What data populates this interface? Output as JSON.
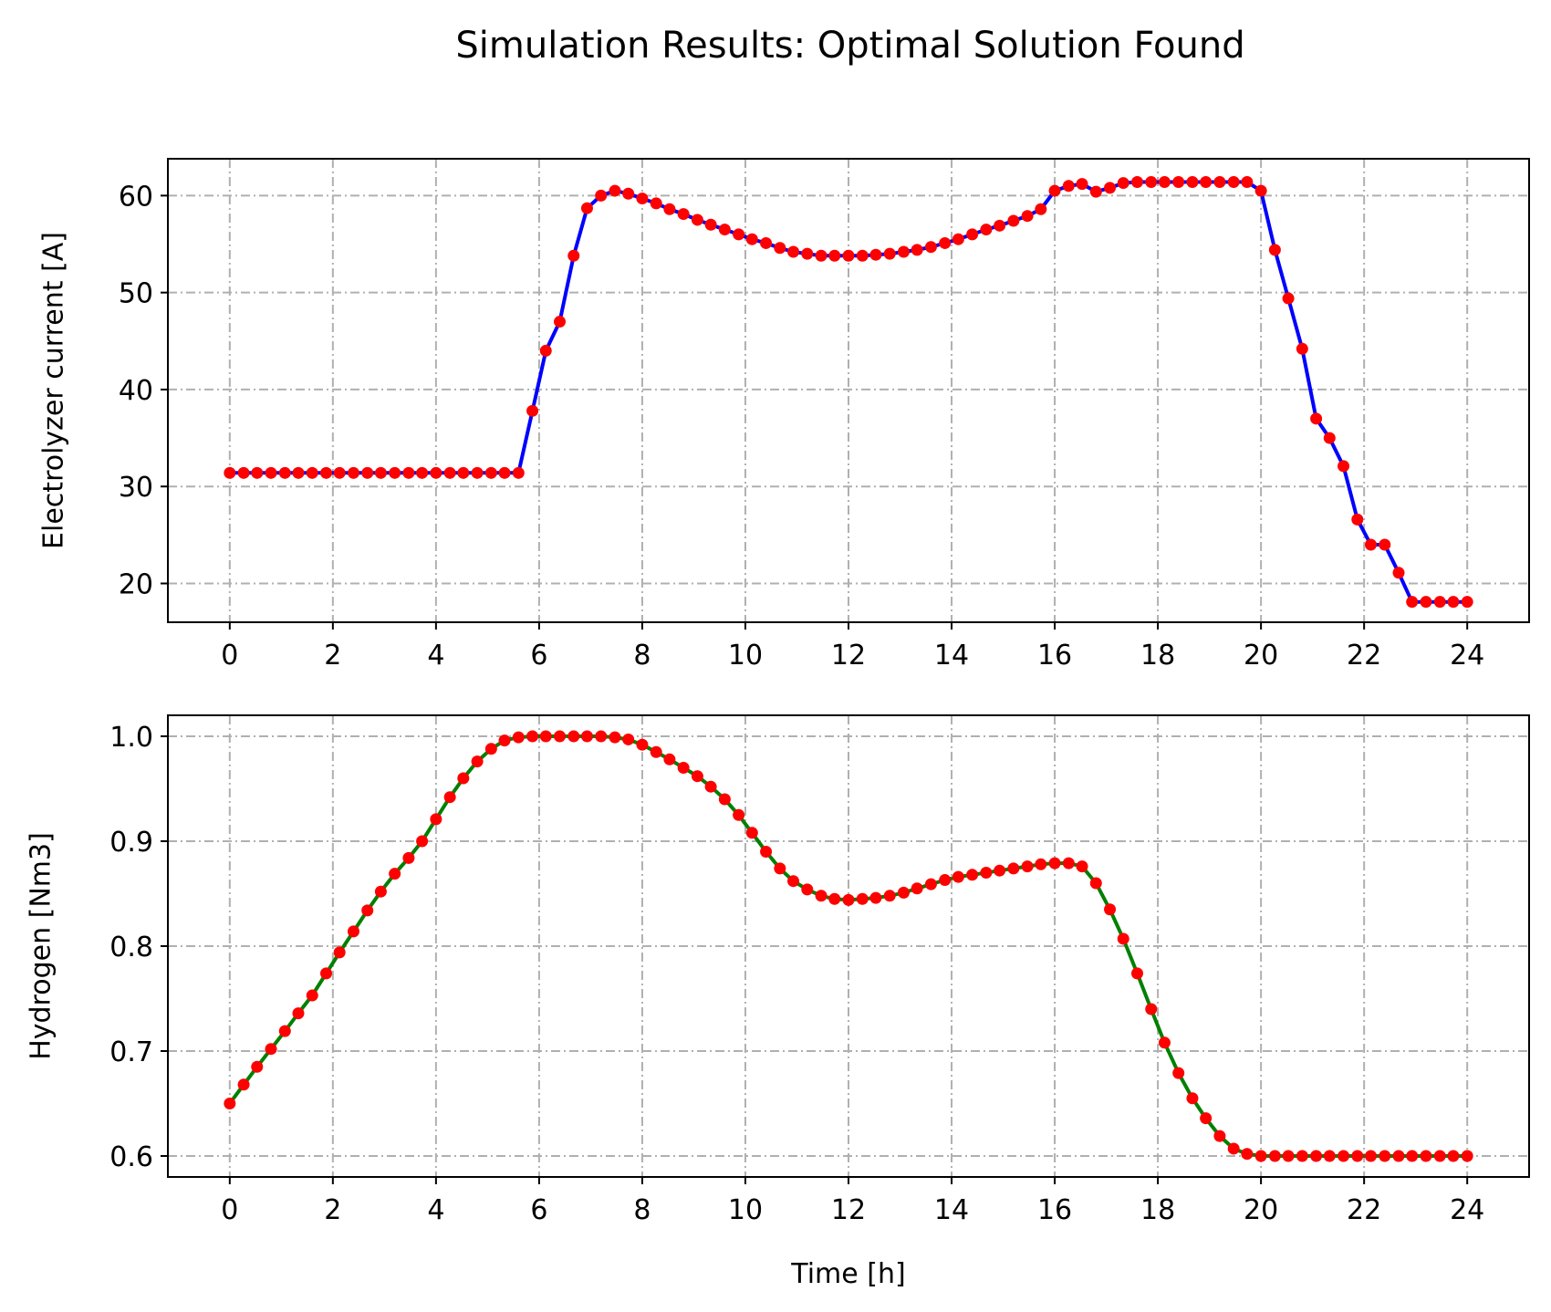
{
  "figure": {
    "title": "Simulation Results:  Optimal Solution Found"
  },
  "chart_data": [
    {
      "type": "line",
      "title": "",
      "xlabel": "",
      "ylabel": "Electrolyzer current [A]",
      "xlim": [
        -1.2,
        25.2
      ],
      "ylim": [
        16.0,
        63.8
      ],
      "xticks": [
        0,
        2,
        4,
        6,
        8,
        10,
        12,
        14,
        16,
        18,
        20,
        22,
        24
      ],
      "yticks": [
        20,
        30,
        40,
        50,
        60
      ],
      "grid": true,
      "legend": "none",
      "line_color": "#0000ff",
      "marker_color": "#ff0000",
      "series": [
        {
          "x": [
            0,
            0.27,
            0.53,
            0.8,
            1.07,
            1.33,
            1.6,
            1.87,
            2.13,
            2.4,
            2.67,
            2.93,
            3.2,
            3.47,
            3.73,
            4.0,
            4.27,
            4.53,
            4.8,
            5.07,
            5.33,
            5.6,
            5.87,
            6.13,
            6.4,
            6.67,
            6.93,
            7.2,
            7.47,
            7.73,
            8.0,
            8.27,
            8.53,
            8.8,
            9.07,
            9.33,
            9.6,
            9.87,
            10.13,
            10.4,
            10.67,
            10.93,
            11.2,
            11.47,
            11.73,
            12.0,
            12.27,
            12.53,
            12.8,
            13.07,
            13.33,
            13.6,
            13.87,
            14.13,
            14.4,
            14.67,
            14.93,
            15.2,
            15.47,
            15.73,
            16.0,
            16.27,
            16.53,
            16.8,
            17.07,
            17.33,
            17.6,
            17.87,
            18.13,
            18.4,
            18.67,
            18.93,
            19.2,
            19.47,
            19.73,
            20.0,
            20.27,
            20.53,
            20.8,
            21.07,
            21.33,
            21.6,
            21.87,
            22.13,
            22.4,
            22.67,
            22.93,
            23.2,
            23.47,
            23.73,
            24.0
          ],
          "y": [
            31.4,
            31.4,
            31.4,
            31.4,
            31.4,
            31.4,
            31.4,
            31.4,
            31.4,
            31.4,
            31.4,
            31.4,
            31.4,
            31.4,
            31.4,
            31.4,
            31.4,
            31.4,
            31.4,
            31.4,
            31.4,
            31.4,
            37.8,
            44.0,
            47.0,
            53.8,
            58.7,
            60.0,
            60.5,
            60.2,
            59.7,
            59.2,
            58.6,
            58.1,
            57.5,
            57.0,
            56.5,
            56.0,
            55.5,
            55.1,
            54.6,
            54.2,
            54.0,
            53.8,
            53.8,
            53.8,
            53.8,
            53.9,
            54.0,
            54.2,
            54.4,
            54.7,
            55.1,
            55.5,
            56.0,
            56.5,
            56.9,
            57.4,
            57.9,
            58.6,
            60.5,
            61.0,
            61.2,
            60.4,
            60.8,
            61.3,
            61.4,
            61.4,
            61.4,
            61.4,
            61.4,
            61.4,
            61.4,
            61.4,
            61.4,
            60.5,
            54.4,
            49.4,
            44.2,
            37.0,
            35.0,
            32.1,
            26.6,
            24.0,
            24.0,
            21.1,
            18.1,
            18.1,
            18.1,
            18.1,
            18.1
          ]
        }
      ]
    },
    {
      "type": "line",
      "title": "",
      "xlabel": "Time [h]",
      "ylabel": "Hydrogen [Nm3]",
      "xlim": [
        -1.2,
        25.2
      ],
      "ylim": [
        0.58,
        1.02
      ],
      "xticks": [
        0,
        2,
        4,
        6,
        8,
        10,
        12,
        14,
        16,
        18,
        20,
        22,
        24
      ],
      "yticks": [
        0.6,
        0.7,
        0.8,
        0.9,
        1.0
      ],
      "grid": true,
      "legend": "none",
      "line_color": "#008000",
      "marker_color": "#ff0000",
      "series": [
        {
          "x": [
            0,
            0.27,
            0.53,
            0.8,
            1.07,
            1.33,
            1.6,
            1.87,
            2.13,
            2.4,
            2.67,
            2.93,
            3.2,
            3.47,
            3.73,
            4.0,
            4.27,
            4.53,
            4.8,
            5.07,
            5.33,
            5.6,
            5.87,
            6.13,
            6.4,
            6.67,
            6.93,
            7.2,
            7.47,
            7.73,
            8.0,
            8.27,
            8.53,
            8.8,
            9.07,
            9.33,
            9.6,
            9.87,
            10.13,
            10.4,
            10.67,
            10.93,
            11.2,
            11.47,
            11.73,
            12.0,
            12.27,
            12.53,
            12.8,
            13.07,
            13.33,
            13.6,
            13.87,
            14.13,
            14.4,
            14.67,
            14.93,
            15.2,
            15.47,
            15.73,
            16.0,
            16.27,
            16.53,
            16.8,
            17.07,
            17.33,
            17.6,
            17.87,
            18.13,
            18.4,
            18.67,
            18.93,
            19.2,
            19.47,
            19.73,
            20.0,
            20.27,
            20.53,
            20.8,
            21.07,
            21.33,
            21.6,
            21.87,
            22.13,
            22.4,
            22.67,
            22.93,
            23.2,
            23.47,
            23.73,
            24.0
          ],
          "y": [
            0.65,
            0.668,
            0.685,
            0.702,
            0.719,
            0.736,
            0.753,
            0.774,
            0.794,
            0.814,
            0.834,
            0.852,
            0.869,
            0.884,
            0.9,
            0.921,
            0.942,
            0.96,
            0.976,
            0.988,
            0.996,
            0.999,
            1.0,
            1.0,
            1.0,
            1.0,
            1.0,
            1.0,
            0.999,
            0.997,
            0.992,
            0.985,
            0.978,
            0.97,
            0.962,
            0.952,
            0.94,
            0.925,
            0.908,
            0.89,
            0.874,
            0.862,
            0.854,
            0.848,
            0.845,
            0.844,
            0.845,
            0.846,
            0.848,
            0.851,
            0.855,
            0.859,
            0.863,
            0.866,
            0.868,
            0.87,
            0.872,
            0.874,
            0.876,
            0.878,
            0.879,
            0.879,
            0.876,
            0.86,
            0.835,
            0.807,
            0.774,
            0.74,
            0.708,
            0.679,
            0.655,
            0.636,
            0.619,
            0.607,
            0.602,
            0.6,
            0.6,
            0.6,
            0.6,
            0.6,
            0.6,
            0.6,
            0.6,
            0.6,
            0.6,
            0.6,
            0.6,
            0.6,
            0.6,
            0.6,
            0.6
          ]
        }
      ]
    }
  ]
}
